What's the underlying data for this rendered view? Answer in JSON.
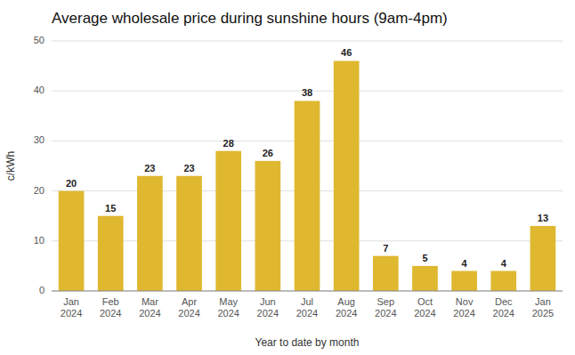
{
  "chart_data": {
    "type": "bar",
    "title": "Average wholesale price during sunshine hours (9am-4pm)",
    "xlabel": "Year to date by month",
    "ylabel": "c/kWh",
    "categories": [
      "Jan\n2024",
      "Feb\n2024",
      "Mar\n2024",
      "Apr\n2024",
      "May\n2024",
      "Jun\n2024",
      "Jul\n2024",
      "Aug\n2024",
      "Sep\n2024",
      "Oct\n2024",
      "Nov\n2024",
      "Dec\n2024",
      "Jan\n2025"
    ],
    "values": [
      20,
      15,
      23,
      23,
      28,
      26,
      38,
      46,
      7,
      5,
      4,
      4,
      13
    ],
    "color": "#DFB830",
    "ylim": [
      0,
      50
    ],
    "yticks": [
      0,
      10,
      20,
      30,
      40,
      50
    ],
    "grid": true,
    "data_labels": true
  }
}
